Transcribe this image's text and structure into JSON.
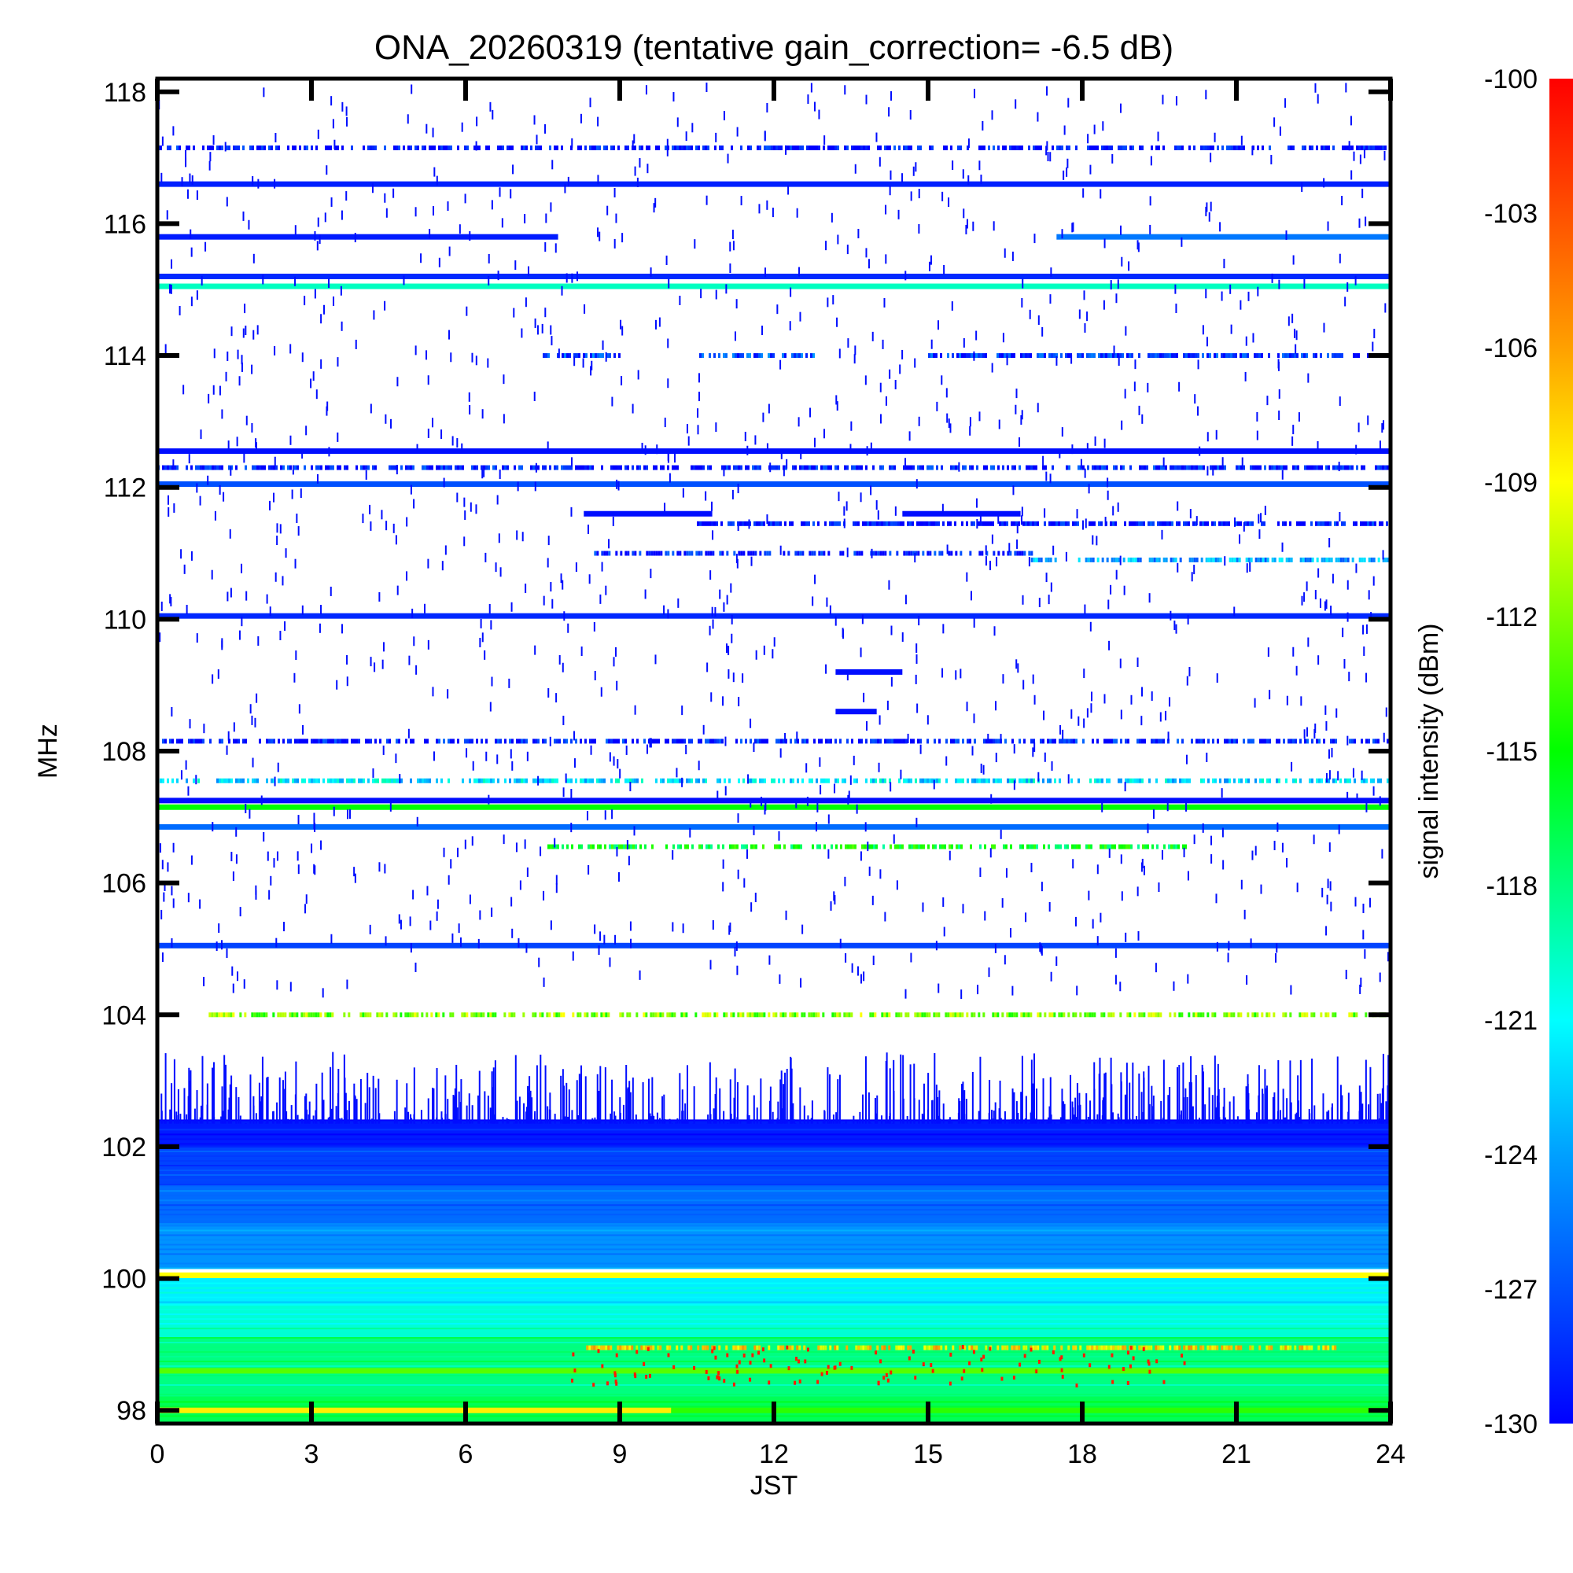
{
  "chart_data": {
    "type": "heatmap",
    "title": "ONA_20260319 (tentative gain_correction= -6.5 dB)",
    "xlabel": "JST",
    "ylabel": "MHz",
    "colorbar_label": "signal intensity (dBm)",
    "xlim": [
      0,
      24
    ],
    "ylim": [
      97.8,
      118.2
    ],
    "clim": [
      -130,
      -100
    ],
    "x_ticks": [
      "0",
      "3",
      "6",
      "9",
      "12",
      "15",
      "18",
      "21",
      "24"
    ],
    "x_tick_values": [
      0,
      3,
      6,
      9,
      12,
      15,
      18,
      21,
      24
    ],
    "y_ticks": [
      "98",
      "100",
      "102",
      "104",
      "106",
      "108",
      "110",
      "112",
      "114",
      "116",
      "118"
    ],
    "y_tick_values": [
      98,
      100,
      102,
      104,
      106,
      108,
      110,
      112,
      114,
      116,
      118
    ],
    "colorbar_ticks": [
      "-100",
      "-103",
      "-106",
      "-109",
      "-112",
      "-115",
      "-118",
      "-121",
      "-124",
      "-127",
      "-130"
    ],
    "colorbar_tick_values": [
      -100,
      -103,
      -106,
      -109,
      -112,
      -115,
      -118,
      -121,
      -124,
      -127,
      -130
    ],
    "colormap": [
      "#0000ff",
      "#0050ff",
      "#00a0ff",
      "#00ffff",
      "#00ff80",
      "#00ff00",
      "#80ff00",
      "#ffff00",
      "#ffa000",
      "#ff5000",
      "#ff0000"
    ],
    "continuous_bands": [
      {
        "freq": 117.15,
        "level": -129.5,
        "t": [
          0,
          24
        ],
        "sparse": true
      },
      {
        "freq": 116.6,
        "level": -128.8,
        "t": [
          0,
          24
        ]
      },
      {
        "freq": 115.8,
        "level": -129.0,
        "t": [
          0,
          7.8
        ]
      },
      {
        "freq": 115.8,
        "level": -125.5,
        "t": [
          17.5,
          24
        ]
      },
      {
        "freq": 115.2,
        "level": -128.5,
        "t": [
          0,
          24
        ]
      },
      {
        "freq": 115.05,
        "level": -119.5,
        "t": [
          0,
          24
        ]
      },
      {
        "freq": 114.0,
        "level": -127.0,
        "t": [
          7.5,
          9.0
        ],
        "sparse": true
      },
      {
        "freq": 114.0,
        "level": -127.0,
        "t": [
          10.5,
          12.8
        ],
        "sparse": true
      },
      {
        "freq": 114.0,
        "level": -128.0,
        "t": [
          15.0,
          24
        ],
        "sparse": true
      },
      {
        "freq": 112.55,
        "level": -129.5,
        "t": [
          0,
          24
        ]
      },
      {
        "freq": 112.3,
        "level": -129.0,
        "t": [
          0,
          24
        ],
        "sparse": true
      },
      {
        "freq": 112.05,
        "level": -127.0,
        "t": [
          0,
          24
        ]
      },
      {
        "freq": 111.6,
        "level": -129.5,
        "t": [
          8.3,
          10.8
        ]
      },
      {
        "freq": 111.6,
        "level": -129.5,
        "t": [
          14.5,
          16.8
        ]
      },
      {
        "freq": 111.45,
        "level": -129.5,
        "t": [
          10.5,
          24
        ],
        "sparse": true
      },
      {
        "freq": 111.0,
        "level": -129.0,
        "t": [
          8.5,
          17.0
        ],
        "sparse": true
      },
      {
        "freq": 110.9,
        "level": -124.0,
        "t": [
          17.0,
          24
        ],
        "sparse": true
      },
      {
        "freq": 110.05,
        "level": -128.5,
        "t": [
          0,
          24
        ]
      },
      {
        "freq": 109.2,
        "level": -129.5,
        "t": [
          13.2,
          14.5
        ]
      },
      {
        "freq": 108.6,
        "level": -129.5,
        "t": [
          13.2,
          14.0
        ]
      },
      {
        "freq": 108.15,
        "level": -129.0,
        "t": [
          0,
          24
        ],
        "sparse": true
      },
      {
        "freq": 107.55,
        "level": -122.0,
        "t": [
          0,
          24
        ],
        "sparse": true
      },
      {
        "freq": 107.25,
        "level": -129.5,
        "t": [
          0,
          24
        ]
      },
      {
        "freq": 107.15,
        "level": -115.0,
        "t": [
          0,
          24
        ]
      },
      {
        "freq": 106.85,
        "level": -126.0,
        "t": [
          0,
          24
        ]
      },
      {
        "freq": 106.55,
        "level": -116.0,
        "t": [
          7.5,
          20.0
        ],
        "sparse": true
      },
      {
        "freq": 105.05,
        "level": -127.5,
        "t": [
          0,
          24
        ]
      },
      {
        "freq": 104.0,
        "level": -112.0,
        "t": [
          1.0,
          24
        ],
        "sparse": true
      },
      {
        "freq": 100.05,
        "level": -109.0,
        "t": [
          0,
          24
        ]
      },
      {
        "freq": 98.95,
        "level": -108.0,
        "t": [
          8.3,
          23.0
        ],
        "sparse": true
      },
      {
        "freq": 98.6,
        "level": -113.0,
        "t": [
          0,
          24
        ]
      },
      {
        "freq": 98.0,
        "level": -108.5,
        "t": [
          0,
          10.0
        ]
      },
      {
        "freq": 98.0,
        "level": -114.0,
        "t": [
          10.0,
          24
        ]
      }
    ],
    "background_bands": [
      {
        "f": [
          102.0,
          102.4
        ],
        "level": -129.0
      },
      {
        "f": [
          101.4,
          102.0
        ],
        "level": -127.5
      },
      {
        "f": [
          100.8,
          101.4
        ],
        "level": -126.0
      },
      {
        "f": [
          100.15,
          100.8
        ],
        "level": -124.5
      },
      {
        "f": [
          99.6,
          100.0
        ],
        "level": -121.5
      },
      {
        "f": [
          99.1,
          99.6
        ],
        "level": -120.0
      },
      {
        "f": [
          98.2,
          99.1
        ],
        "level": -118.0
      },
      {
        "f": [
          97.8,
          98.2
        ],
        "level": -117.0
      }
    ]
  }
}
